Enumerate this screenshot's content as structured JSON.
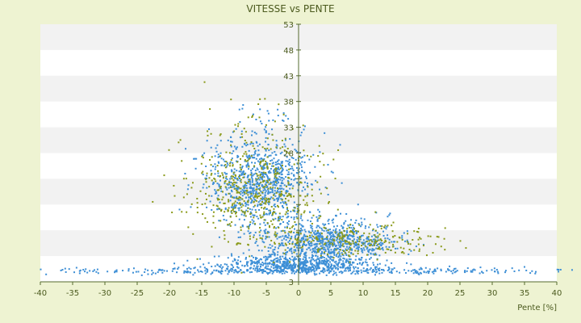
{
  "chart_data": {
    "type": "scatter",
    "title": "VITESSE vs PENTE",
    "xlabel": "Pente [%]",
    "ylabel": "",
    "xlim": [
      -40,
      40
    ],
    "ylim": [
      3,
      53
    ],
    "x_ticks": [
      -40,
      -35,
      -30,
      -25,
      -20,
      -15,
      -10,
      -5,
      0,
      5,
      10,
      15,
      20,
      25,
      30,
      35,
      40
    ],
    "y_ticks": [
      3,
      8,
      13,
      18,
      23,
      28,
      33,
      38,
      43,
      48,
      53
    ],
    "x_tick_labels": [
      "-40",
      "-35",
      "-30",
      "-25",
      "-20",
      "-15",
      "-10",
      "-5",
      "0",
      "5",
      "10",
      "15",
      "20",
      "25",
      "30",
      "35",
      "40"
    ],
    "y_tick_labels": [
      "3",
      "",
      "",
      "",
      "",
      "28",
      "33",
      "38",
      "43",
      "48",
      "53"
    ],
    "grid": true,
    "colors": {
      "background": "#eef3d2",
      "band": "#f2f2f2",
      "plot": "#ffffff",
      "axis": "#556b2f",
      "text": "#4b5a1e"
    },
    "series": [
      {
        "color": "#3d8fd6",
        "clusters": [
          {
            "cx": -6,
            "cy": 20,
            "sx": 4,
            "sy": 6,
            "n": 900
          },
          {
            "cx": 5,
            "cy": 10,
            "sx": 5,
            "sy": 2.5,
            "n": 700
          },
          {
            "cx": 0,
            "cy": 6,
            "sx": 6,
            "sy": 1.2,
            "n": 600
          },
          {
            "cx": 0,
            "cy": 5,
            "sx": 20,
            "sy": 0.4,
            "n": 400
          }
        ]
      },
      {
        "color": "#8a9a1a",
        "clusters": [
          {
            "cx": -7,
            "cy": 18,
            "sx": 5,
            "sy": 7,
            "n": 500
          },
          {
            "cx": 8,
            "cy": 10,
            "sx": 7,
            "sy": 2,
            "n": 250
          }
        ]
      }
    ]
  }
}
